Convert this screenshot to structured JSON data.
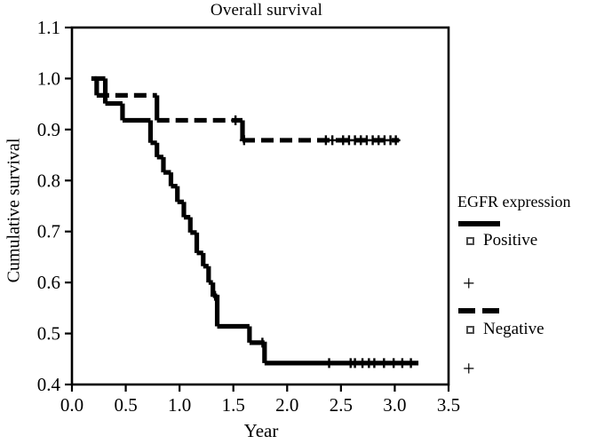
{
  "figure": {
    "title": "Overall survival"
  },
  "chart_data": {
    "type": "line",
    "variant": "kaplan_meier_step",
    "title": "Overall survival",
    "xlabel": "Year",
    "ylabel": "Cumulative survival",
    "xlim": [
      0.0,
      3.5
    ],
    "ylim": [
      0.4,
      1.1
    ],
    "grid": false,
    "legend_position": "right-outside",
    "x_tick_labels": [
      "0.0",
      "0.5",
      "1.0",
      "1.5",
      "2.0",
      "2.5",
      "3.0",
      "3.5"
    ],
    "y_tick_labels": [
      "0.4",
      "0.5",
      "0.6",
      "0.7",
      "0.8",
      "0.9",
      "1.0",
      "1.1"
    ],
    "series": [
      {
        "name": "Positive",
        "line_style": "solid",
        "color": "#000000",
        "steps": [
          [
            0.21,
            1.0
          ],
          [
            0.31,
            0.951
          ],
          [
            0.47,
            0.918
          ],
          [
            0.73,
            0.874
          ],
          [
            0.79,
            0.846
          ],
          [
            0.85,
            0.816
          ],
          [
            0.92,
            0.789
          ],
          [
            0.98,
            0.758
          ],
          [
            1.04,
            0.728
          ],
          [
            1.1,
            0.698
          ],
          [
            1.16,
            0.658
          ],
          [
            1.22,
            0.632
          ],
          [
            1.27,
            0.6
          ],
          [
            1.31,
            0.574
          ],
          [
            1.35,
            0.514
          ],
          [
            1.65,
            0.482
          ],
          [
            1.79,
            0.442
          ]
        ],
        "end_time": 3.22,
        "censors": [
          [
            1.33,
            0.574
          ],
          [
            1.77,
            0.482
          ],
          [
            2.39,
            0.442
          ],
          [
            2.59,
            0.442
          ],
          [
            2.63,
            0.442
          ],
          [
            2.7,
            0.442
          ],
          [
            2.76,
            0.442
          ],
          [
            2.81,
            0.442
          ],
          [
            2.9,
            0.442
          ],
          [
            2.99,
            0.442
          ],
          [
            3.07,
            0.442
          ],
          [
            3.15,
            0.442
          ]
        ]
      },
      {
        "name": "Negative",
        "line_style": "dashed",
        "color": "#000000",
        "steps": [
          [
            0.18,
            1.0
          ],
          [
            0.23,
            0.967
          ],
          [
            0.79,
            0.918
          ],
          [
            1.585,
            0.879
          ]
        ],
        "end_time": 3.04,
        "censors": [
          [
            1.52,
            0.918
          ],
          [
            1.6,
            0.879
          ],
          [
            2.36,
            0.879
          ],
          [
            2.42,
            0.879
          ],
          [
            2.52,
            0.879
          ],
          [
            2.575,
            0.879
          ],
          [
            2.63,
            0.879
          ],
          [
            2.685,
            0.879
          ],
          [
            2.74,
            0.879
          ],
          [
            2.795,
            0.879
          ],
          [
            2.85,
            0.879
          ],
          [
            2.905,
            0.879
          ],
          [
            2.96,
            0.879
          ],
          [
            3.01,
            0.879
          ]
        ]
      }
    ],
    "legend": {
      "title": "EGFR expression",
      "entries": [
        {
          "label": "Positive",
          "line": "solid",
          "marker": "open-square",
          "censor_symbol": "+"
        },
        {
          "label": "Negative",
          "line": "dashed",
          "marker": "open-square",
          "censor_symbol": "+"
        }
      ]
    }
  },
  "colors": {
    "line": "#000000",
    "marker_edge": "#4a4a4a",
    "background": "#ffffff",
    "axis": "#000000"
  }
}
